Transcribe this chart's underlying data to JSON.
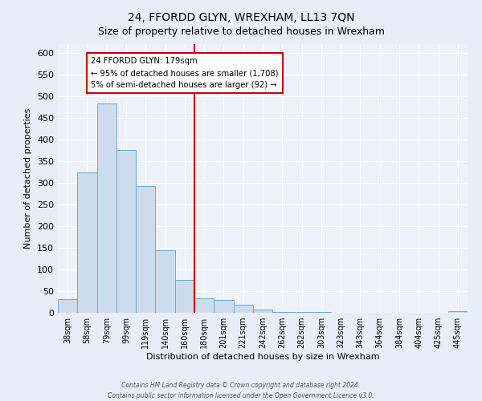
{
  "title": "24, FFORDD GLYN, WREXHAM, LL13 7QN",
  "subtitle": "Size of property relative to detached houses in Wrexham",
  "xlabel": "Distribution of detached houses by size in Wrexham",
  "ylabel": "Number of detached properties",
  "bar_labels": [
    "38sqm",
    "58sqm",
    "79sqm",
    "99sqm",
    "119sqm",
    "140sqm",
    "160sqm",
    "180sqm",
    "201sqm",
    "221sqm",
    "242sqm",
    "262sqm",
    "282sqm",
    "303sqm",
    "323sqm",
    "343sqm",
    "364sqm",
    "384sqm",
    "404sqm",
    "425sqm",
    "445sqm"
  ],
  "bar_values": [
    32,
    323,
    483,
    375,
    292,
    145,
    76,
    33,
    30,
    18,
    7,
    2,
    1,
    1,
    0,
    0,
    0,
    0,
    0,
    0,
    3
  ],
  "bar_color": "#ccdcec",
  "bar_edge_color": "#6aaad4",
  "vline_x": 7.5,
  "vline_color": "#cc0000",
  "annotation_title": "24 FFORDD GLYN: 179sqm",
  "annotation_line1": "← 95% of detached houses are smaller (1,708)",
  "annotation_line2": "5% of semi-detached houses are larger (92) →",
  "annotation_box_edge": "#cc0000",
  "ylim": [
    0,
    620
  ],
  "yticks": [
    0,
    50,
    100,
    150,
    200,
    250,
    300,
    350,
    400,
    450,
    500,
    550,
    600
  ],
  "footnote1": "Contains HM Land Registry data © Crown copyright and database right 2024.",
  "footnote2": "Contains public sector information licensed under the Open Government Licence v3.0.",
  "bg_color": "#e8eef8",
  "plot_bg_color": "#edf2fa",
  "title_fontsize": 10,
  "subtitle_fontsize": 9,
  "xlabel_fontsize": 8,
  "ylabel_fontsize": 8,
  "tick_fontsize": 7,
  "ytick_fontsize": 8,
  "footnote_fontsize": 5.5
}
